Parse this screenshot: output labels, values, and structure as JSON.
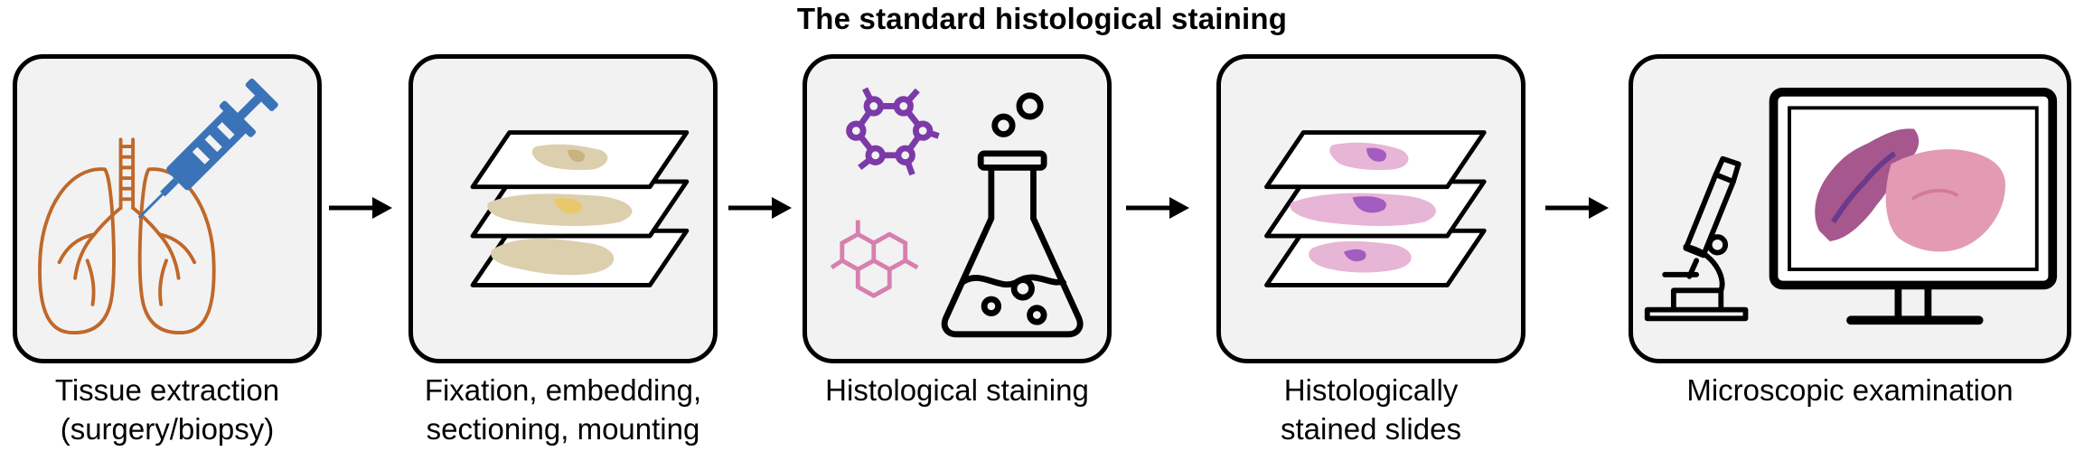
{
  "title": "The standard histological staining",
  "stages": [
    {
      "id": "tissue-extraction",
      "label_lines": [
        "Tissue extraction",
        "(surgery/biopsy)"
      ],
      "icons": [
        "lungs-icon",
        "syringe-icon"
      ]
    },
    {
      "id": "fixation",
      "label_lines": [
        "Fixation, embedding,",
        "sectioning, mounting"
      ],
      "icons": [
        "tissue-slides-icon"
      ]
    },
    {
      "id": "staining",
      "label_lines": [
        "Histological staining"
      ],
      "icons": [
        "molecule-icon",
        "flask-icon"
      ]
    },
    {
      "id": "stained-slides",
      "label_lines": [
        "Histologically",
        "stained slides"
      ],
      "icons": [
        "stained-slides-icon"
      ]
    },
    {
      "id": "microscopic-examination",
      "label_lines": [
        "Microscopic examination"
      ],
      "icons": [
        "microscope-icon",
        "monitor-icon"
      ]
    }
  ],
  "colors": {
    "box_fill": "#f2f2f2",
    "lungs": "#c0682a",
    "syringe": "#3b73b9",
    "molecule_purple": "#7b3aa8",
    "molecule_pink": "#d77fae",
    "tissue_beige": "#dccfae",
    "stain_pink": "#e7b5d5",
    "stain_purple": "#a35cc0"
  }
}
